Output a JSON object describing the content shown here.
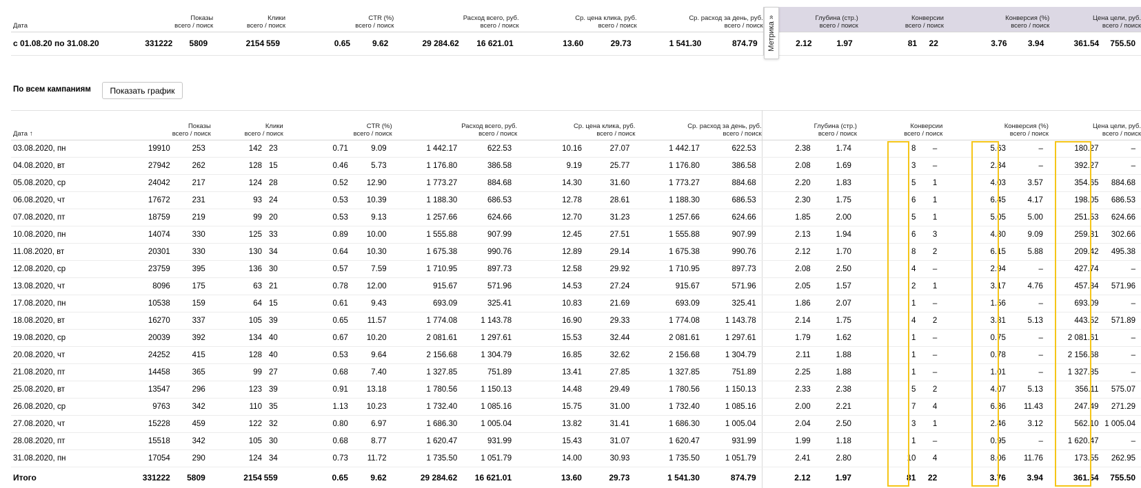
{
  "summary": {
    "headers": {
      "date": "Дата",
      "shows_title": "Показы",
      "shows_sub": "всего / поиск",
      "clicks_title": "Клики",
      "clicks_sub": "всего / поиск",
      "ctr_title": "CTR (%)",
      "ctr_sub": "всего / поиск",
      "spend_title": "Расход всего, руб.",
      "spend_sub": "всего / поиск",
      "cpc_title": "Ср. цена клика, руб.",
      "cpc_sub": "всего / поиск",
      "daily_title": "Ср. расход за день, руб.",
      "daily_sub": "всего / поиск",
      "depth_title": "Глубина (стр.)",
      "depth_sub": "всего / поиск",
      "conv_title": "Конверсии",
      "conv_sub": "всего / поиск",
      "convp_title": "Конверсия (%)",
      "convp_sub": "всего / поиск",
      "goal_title": "Цена цели, руб.",
      "goal_sub": "всего / поиск"
    },
    "row": [
      "с 01.08.20 по 31.08.20",
      "331222",
      "5809",
      "2154",
      "559",
      "0.65",
      "9.62",
      "29 284.62",
      "16 621.01",
      "13.60",
      "29.73",
      "1 541.30",
      "874.79",
      "2.12",
      "1.97",
      "81",
      "22",
      "3.76",
      "3.94",
      "361.54",
      "755.50"
    ]
  },
  "metrika_tab": "Метрика »",
  "toolbar": {
    "label": "По всем кампаниям",
    "show_chart": "Показать график"
  },
  "table": {
    "headers": {
      "date": "Дата",
      "sort_arrow": "↑",
      "shows_title": "Показы",
      "shows_sub": "всего / поиск",
      "clicks_title": "Клики",
      "clicks_sub": "всего / поиск",
      "ctr_title": "CTR (%)",
      "ctr_sub": "всего / поиск",
      "spend_title": "Расход всего, руб.",
      "spend_sub": "всего / поиск",
      "cpc_title": "Ср. цена клика, руб.",
      "cpc_sub": "всего / поиск",
      "daily_title": "Ср. расход за день, руб.",
      "daily_sub": "всего / поиск",
      "depth_title": "Глубина (стр.)",
      "depth_sub": "всего / поиск",
      "conv_title": "Конверсии",
      "conv_sub": "всего / поиск",
      "convp_title": "Конверсия (%)",
      "convp_sub": "всего / поиск",
      "goal_title": "Цена цели, руб.",
      "goal_sub": "всего / поиск"
    },
    "rows": [
      [
        "03.08.2020, пн",
        "19910",
        "253",
        "142",
        "23",
        "0.71",
        "9.09",
        "1 442.17",
        "622.53",
        "10.16",
        "27.07",
        "1 442.17",
        "622.53",
        "2.38",
        "1.74",
        "8",
        "–",
        "5.63",
        "–",
        "180.27",
        "–"
      ],
      [
        "04.08.2020, вт",
        "27942",
        "262",
        "128",
        "15",
        "0.46",
        "5.73",
        "1 176.80",
        "386.58",
        "9.19",
        "25.77",
        "1 176.80",
        "386.58",
        "2.08",
        "1.69",
        "3",
        "–",
        "2.34",
        "–",
        "392.27",
        "–"
      ],
      [
        "05.08.2020, ср",
        "24042",
        "217",
        "124",
        "28",
        "0.52",
        "12.90",
        "1 773.27",
        "884.68",
        "14.30",
        "31.60",
        "1 773.27",
        "884.68",
        "2.20",
        "1.83",
        "5",
        "1",
        "4.03",
        "3.57",
        "354.65",
        "884.68"
      ],
      [
        "06.08.2020, чт",
        "17672",
        "231",
        "93",
        "24",
        "0.53",
        "10.39",
        "1 188.30",
        "686.53",
        "12.78",
        "28.61",
        "1 188.30",
        "686.53",
        "2.30",
        "1.75",
        "6",
        "1",
        "6.45",
        "4.17",
        "198.05",
        "686.53"
      ],
      [
        "07.08.2020, пт",
        "18759",
        "219",
        "99",
        "20",
        "0.53",
        "9.13",
        "1 257.66",
        "624.66",
        "12.70",
        "31.23",
        "1 257.66",
        "624.66",
        "1.85",
        "2.00",
        "5",
        "1",
        "5.05",
        "5.00",
        "251.53",
        "624.66"
      ],
      [
        "10.08.2020, пн",
        "14074",
        "330",
        "125",
        "33",
        "0.89",
        "10.00",
        "1 555.88",
        "907.99",
        "12.45",
        "27.51",
        "1 555.88",
        "907.99",
        "2.13",
        "1.94",
        "6",
        "3",
        "4.80",
        "9.09",
        "259.31",
        "302.66"
      ],
      [
        "11.08.2020, вт",
        "20301",
        "330",
        "130",
        "34",
        "0.64",
        "10.30",
        "1 675.38",
        "990.76",
        "12.89",
        "29.14",
        "1 675.38",
        "990.76",
        "2.12",
        "1.70",
        "8",
        "2",
        "6.15",
        "5.88",
        "209.42",
        "495.38"
      ],
      [
        "12.08.2020, ср",
        "23759",
        "395",
        "136",
        "30",
        "0.57",
        "7.59",
        "1 710.95",
        "897.73",
        "12.58",
        "29.92",
        "1 710.95",
        "897.73",
        "2.08",
        "2.50",
        "4",
        "–",
        "2.94",
        "–",
        "427.74",
        "–"
      ],
      [
        "13.08.2020, чт",
        "8096",
        "175",
        "63",
        "21",
        "0.78",
        "12.00",
        "915.67",
        "571.96",
        "14.53",
        "27.24",
        "915.67",
        "571.96",
        "2.05",
        "1.57",
        "2",
        "1",
        "3.17",
        "4.76",
        "457.84",
        "571.96"
      ],
      [
        "17.08.2020, пн",
        "10538",
        "159",
        "64",
        "15",
        "0.61",
        "9.43",
        "693.09",
        "325.41",
        "10.83",
        "21.69",
        "693.09",
        "325.41",
        "1.86",
        "2.07",
        "1",
        "–",
        "1.56",
        "–",
        "693.09",
        "–"
      ],
      [
        "18.08.2020, вт",
        "16270",
        "337",
        "105",
        "39",
        "0.65",
        "11.57",
        "1 774.08",
        "1 143.78",
        "16.90",
        "29.33",
        "1 774.08",
        "1 143.78",
        "2.14",
        "1.75",
        "4",
        "2",
        "3.81",
        "5.13",
        "443.52",
        "571.89"
      ],
      [
        "19.08.2020, ср",
        "20039",
        "392",
        "134",
        "40",
        "0.67",
        "10.20",
        "2 081.61",
        "1 297.61",
        "15.53",
        "32.44",
        "2 081.61",
        "1 297.61",
        "1.79",
        "1.62",
        "1",
        "–",
        "0.75",
        "–",
        "2 081.61",
        "–"
      ],
      [
        "20.08.2020, чт",
        "24252",
        "415",
        "128",
        "40",
        "0.53",
        "9.64",
        "2 156.68",
        "1 304.79",
        "16.85",
        "32.62",
        "2 156.68",
        "1 304.79",
        "2.11",
        "1.88",
        "1",
        "–",
        "0.78",
        "–",
        "2 156.68",
        "–"
      ],
      [
        "21.08.2020, пт",
        "14458",
        "365",
        "99",
        "27",
        "0.68",
        "7.40",
        "1 327.85",
        "751.89",
        "13.41",
        "27.85",
        "1 327.85",
        "751.89",
        "2.25",
        "1.88",
        "1",
        "–",
        "1.01",
        "–",
        "1 327.85",
        "–"
      ],
      [
        "25.08.2020, вт",
        "13547",
        "296",
        "123",
        "39",
        "0.91",
        "13.18",
        "1 780.56",
        "1 150.13",
        "14.48",
        "29.49",
        "1 780.56",
        "1 150.13",
        "2.33",
        "2.38",
        "5",
        "2",
        "4.07",
        "5.13",
        "356.11",
        "575.07"
      ],
      [
        "26.08.2020, ср",
        "9763",
        "342",
        "110",
        "35",
        "1.13",
        "10.23",
        "1 732.40",
        "1 085.16",
        "15.75",
        "31.00",
        "1 732.40",
        "1 085.16",
        "2.00",
        "2.21",
        "7",
        "4",
        "6.36",
        "11.43",
        "247.49",
        "271.29"
      ],
      [
        "27.08.2020, чт",
        "15228",
        "459",
        "122",
        "32",
        "0.80",
        "6.97",
        "1 686.30",
        "1 005.04",
        "13.82",
        "31.41",
        "1 686.30",
        "1 005.04",
        "2.04",
        "2.50",
        "3",
        "1",
        "2.46",
        "3.12",
        "562.10",
        "1 005.04"
      ],
      [
        "28.08.2020, пт",
        "15518",
        "342",
        "105",
        "30",
        "0.68",
        "8.77",
        "1 620.47",
        "931.99",
        "15.43",
        "31.07",
        "1 620.47",
        "931.99",
        "1.99",
        "1.18",
        "1",
        "–",
        "0.95",
        "–",
        "1 620.47",
        "–"
      ],
      [
        "31.08.2020, пн",
        "17054",
        "290",
        "124",
        "34",
        "0.73",
        "11.72",
        "1 735.50",
        "1 051.79",
        "14.00",
        "30.93",
        "1 735.50",
        "1 051.79",
        "2.41",
        "2.80",
        "10",
        "4",
        "8.06",
        "11.76",
        "173.55",
        "262.95"
      ]
    ],
    "total": [
      "Итого",
      "331222",
      "5809",
      "2154",
      "559",
      "0.65",
      "9.62",
      "29 284.62",
      "16 621.01",
      "13.60",
      "29.73",
      "1 541.30",
      "874.79",
      "2.12",
      "1.97",
      "81",
      "22",
      "3.76",
      "3.94",
      "361.54",
      "755.50"
    ]
  },
  "highlight_color": "#f5c518",
  "header_gray": "#dcd8e4"
}
